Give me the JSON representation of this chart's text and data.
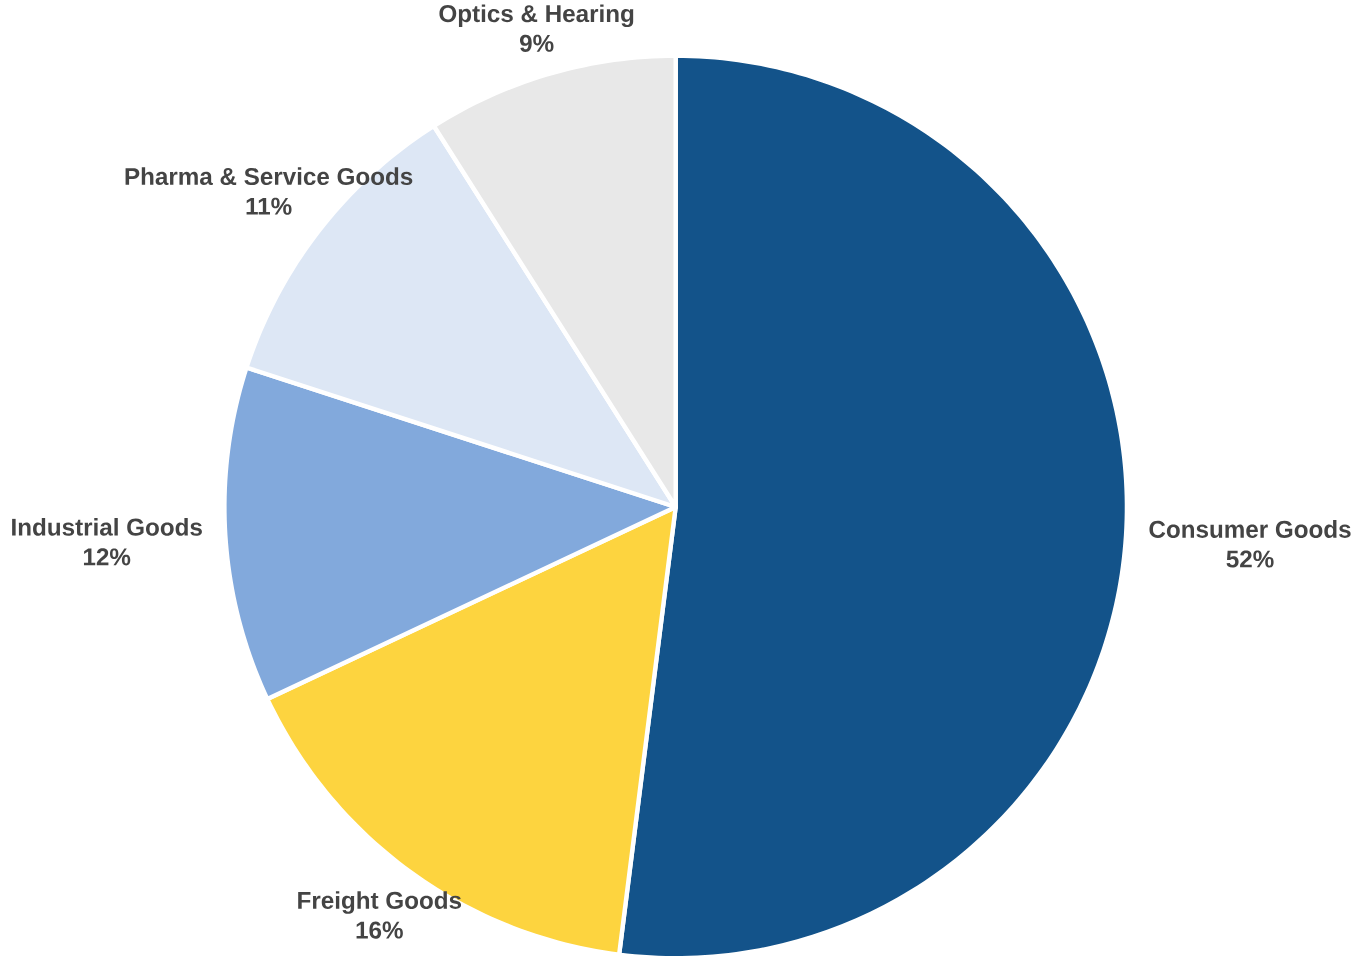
{
  "chart_data": {
    "type": "pie",
    "categories": [
      "Consumer Goods",
      "Freight Goods",
      "Industrial Goods",
      "Pharma & Service Goods",
      "Optics & Hearing"
    ],
    "values": [
      52,
      16,
      12,
      11,
      9
    ],
    "colors": [
      "#13538a",
      "#fdd43f",
      "#82a9dc",
      "#dde7f5",
      "#e8e8e8"
    ],
    "value_labels": [
      "52%",
      "16%",
      "12%",
      "11%",
      "9%"
    ]
  }
}
